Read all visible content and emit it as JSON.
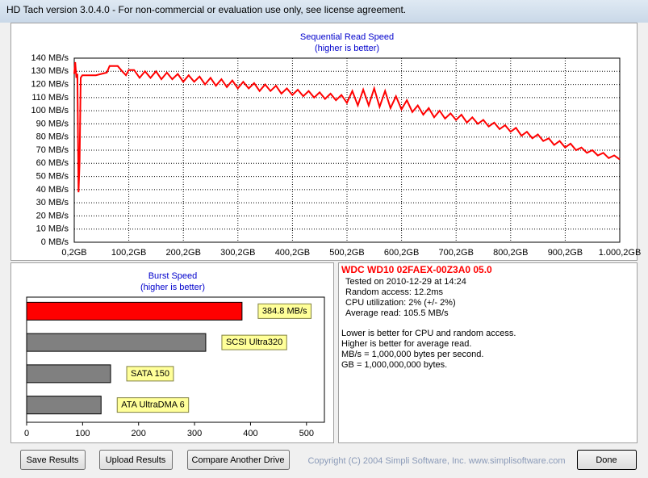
{
  "window": {
    "title": "HD Tach version 3.0.4.0  - For non-commercial or evaluation use only, see license agreement."
  },
  "chart_data": [
    {
      "type": "line",
      "title": "Sequential Read Speed",
      "subtitle": "(higher is better)",
      "color": "#ff0000",
      "grid": true,
      "x": [
        0.2,
        2,
        4,
        6,
        8,
        10,
        12,
        15,
        20,
        30,
        40,
        50,
        60,
        65,
        70,
        80,
        88,
        95,
        100,
        110,
        120,
        130,
        140,
        150,
        160,
        170,
        180,
        190,
        200,
        210,
        220,
        230,
        240,
        250,
        260,
        270,
        280,
        290,
        300,
        310,
        320,
        330,
        340,
        350,
        360,
        370,
        380,
        390,
        400,
        410,
        420,
        430,
        440,
        450,
        460,
        470,
        480,
        490,
        500,
        510,
        520,
        530,
        540,
        550,
        560,
        570,
        580,
        590,
        600,
        610,
        620,
        630,
        640,
        650,
        660,
        670,
        680,
        690,
        700,
        710,
        720,
        730,
        740,
        750,
        760,
        770,
        780,
        790,
        800,
        810,
        820,
        830,
        840,
        850,
        860,
        870,
        880,
        890,
        900,
        910,
        920,
        930,
        940,
        950,
        960,
        970,
        980,
        990,
        1000
      ],
      "values": [
        128,
        137,
        125,
        128,
        38,
        60,
        125,
        127,
        127,
        127,
        127,
        128,
        129,
        134,
        134,
        134,
        130,
        127,
        131,
        131,
        125,
        130,
        125,
        130,
        124,
        129,
        124,
        128,
        122,
        127,
        122,
        126,
        120,
        125,
        119,
        124,
        118,
        123,
        117,
        122,
        117,
        121,
        115,
        120,
        115,
        119,
        113,
        117,
        112,
        116,
        111,
        115,
        110,
        114,
        109,
        113,
        108,
        112,
        106,
        115,
        104,
        116,
        104,
        117,
        103,
        115,
        102,
        111,
        101,
        108,
        99,
        104,
        97,
        102,
        95,
        100,
        94,
        98,
        93,
        97,
        91,
        95,
        90,
        93,
        88,
        91,
        86,
        89,
        84,
        87,
        81,
        84,
        79,
        82,
        77,
        79,
        74,
        77,
        72,
        75,
        70,
        72,
        68,
        70,
        66,
        68,
        64,
        66,
        63
      ],
      "xlim": [
        0.2,
        1000.2
      ],
      "xticks": [
        {
          "value": 0.2,
          "label": "0,2GB"
        },
        {
          "value": 100.2,
          "label": "100,2GB"
        },
        {
          "value": 200.2,
          "label": "200,2GB"
        },
        {
          "value": 300.2,
          "label": "300,2GB"
        },
        {
          "value": 400.2,
          "label": "400,2GB"
        },
        {
          "value": 500.2,
          "label": "500,2GB"
        },
        {
          "value": 600.2,
          "label": "600,2GB"
        },
        {
          "value": 700.2,
          "label": "700,2GB"
        },
        {
          "value": 800.2,
          "label": "800,2GB"
        },
        {
          "value": 900.2,
          "label": "900,2GB"
        },
        {
          "value": 1000.2,
          "label": "1.000,2GB"
        }
      ],
      "ylim": [
        0,
        140
      ],
      "yticks": [
        {
          "value": 0,
          "label": "0 MB/s"
        },
        {
          "value": 10,
          "label": "10 MB/s"
        },
        {
          "value": 20,
          "label": "20 MB/s"
        },
        {
          "value": 30,
          "label": "30 MB/s"
        },
        {
          "value": 40,
          "label": "40 MB/s"
        },
        {
          "value": 50,
          "label": "50 MB/s"
        },
        {
          "value": 60,
          "label": "60 MB/s"
        },
        {
          "value": 70,
          "label": "70 MB/s"
        },
        {
          "value": 80,
          "label": "80 MB/s"
        },
        {
          "value": 90,
          "label": "90 MB/s"
        },
        {
          "value": 100,
          "label": "100 MB/s"
        },
        {
          "value": 110,
          "label": "110 MB/s"
        },
        {
          "value": 120,
          "label": "120 MB/s"
        },
        {
          "value": 130,
          "label": "130 MB/s"
        },
        {
          "value": 140,
          "label": "140 MB/s"
        }
      ]
    },
    {
      "type": "hbar",
      "title": "Burst Speed",
      "subtitle": "(higher is better)",
      "categories": [
        null,
        "SCSI Ultra320",
        "SATA 150",
        "ATA UltraDMA 6"
      ],
      "values": [
        384.8,
        320,
        150,
        133
      ],
      "value_labels": [
        "384.8 MB/s",
        null,
        null,
        null
      ],
      "colors": [
        "#ff0000",
        "#808080",
        "#808080",
        "#808080"
      ],
      "xlim": [
        0,
        532
      ],
      "xticks": [
        0,
        100,
        200,
        300,
        400,
        500
      ]
    }
  ],
  "info": {
    "title": "WDC WD10 02FAEX-00Z3A0 05.0",
    "lines": [
      "Tested on 2010-12-29 at 14:24",
      "Random access: 12.2ms",
      "CPU utilization: 2% (+/- 2%)",
      "Average read: 105.5 MB/s"
    ],
    "notes": [
      "Lower is better for CPU and random access.",
      "Higher is better for average read.",
      "MB/s = 1,000,000 bytes per second.",
      "GB = 1,000,000,000 bytes."
    ]
  },
  "buttons": [
    "Save Results",
    "Upload Results",
    "Compare Another Drive",
    "Done"
  ],
  "copyright": "Copyright (C) 2004 Simpli Software, Inc. www.simplisoftware.com"
}
